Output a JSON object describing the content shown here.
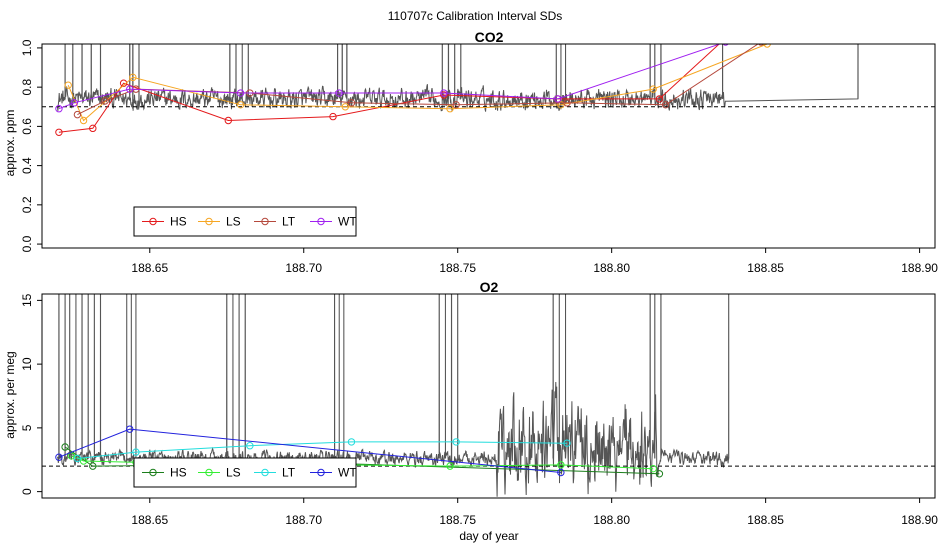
{
  "figure": {
    "title": "110707c   Calibration Interval SDs",
    "xlabel": "day of year"
  },
  "chart_data": [
    {
      "type": "line",
      "title": "CO2",
      "ylabel": "approx. ppm",
      "xlim": [
        188.615,
        188.905
      ],
      "ylim": [
        -0.02,
        1.02
      ],
      "xticks": [
        188.65,
        188.7,
        188.75,
        188.8,
        188.85,
        188.9
      ],
      "xtick_labels": [
        "188.65",
        "188.70",
        "188.75",
        "188.80",
        "188.85",
        "188.90"
      ],
      "yticks": [
        0.0,
        0.2,
        0.4,
        0.6,
        0.8,
        1.0
      ],
      "ytick_labels": [
        "0.0",
        "0.2",
        "0.4",
        "0.6",
        "0.8",
        "1.0"
      ],
      "reference_line": 0.7,
      "legend_position": "bottom-left",
      "noise": {
        "color": "#555555",
        "x_range": [
          188.62,
          188.837
        ],
        "baseline": 0.74,
        "amplitude": 0.09,
        "spikes": [
          188.6225,
          188.625,
          188.628,
          188.631,
          188.634,
          188.6435,
          188.6445,
          188.6465,
          188.676,
          188.678,
          188.68,
          188.682,
          188.711,
          188.7125,
          188.714,
          188.745,
          188.747,
          188.749,
          188.751,
          188.782,
          188.7835,
          188.785,
          188.8125,
          188.814,
          188.816,
          188.836,
          188.88
        ],
        "tail": [
          [
            188.88,
            0.95
          ],
          [
            188.8815,
            1.05
          ],
          [
            188.893,
            1.02
          ]
        ]
      },
      "series": [
        {
          "name": "HS",
          "color": "#e41a1c",
          "x": [
            188.6205,
            188.6315,
            188.6415,
            188.6755,
            188.7095,
            188.7455,
            188.7825,
            188.8155,
            188.837
          ],
          "y": [
            0.57,
            0.59,
            0.82,
            0.63,
            0.65,
            0.76,
            0.74,
            0.74,
            1.05
          ]
        },
        {
          "name": "LS",
          "color": "#f6a623",
          "x": [
            188.6235,
            188.6285,
            188.6445,
            188.6795,
            188.7135,
            188.7475,
            188.7835,
            188.8135,
            188.8505
          ],
          "y": [
            0.81,
            0.63,
            0.85,
            0.71,
            0.7,
            0.69,
            0.71,
            0.79,
            1.02
          ]
        },
        {
          "name": "LT",
          "color": "#b5483c",
          "x": [
            188.6265,
            188.6355,
            188.6455,
            188.6825,
            188.7155,
            188.7495,
            188.7855,
            188.8175,
            188.8485
          ],
          "y": [
            0.66,
            0.73,
            0.79,
            0.77,
            0.72,
            0.71,
            0.72,
            0.71,
            1.03
          ]
        },
        {
          "name": "WT",
          "color": "#a020f0",
          "x": [
            188.6205,
            188.6255,
            188.6435,
            188.6795,
            188.7115,
            188.7455,
            188.7825,
            188.837
          ],
          "y": [
            0.69,
            0.72,
            0.79,
            0.77,
            0.77,
            0.77,
            0.74,
            1.03
          ]
        }
      ]
    },
    {
      "type": "line",
      "title": "O2",
      "ylabel": "approx. per meg",
      "xlim": [
        188.615,
        188.905
      ],
      "ylim": [
        -0.5,
        15.5
      ],
      "xticks": [
        188.65,
        188.7,
        188.75,
        188.8,
        188.85,
        188.9
      ],
      "xtick_labels": [
        "188.65",
        "188.70",
        "188.75",
        "188.80",
        "188.85",
        "188.90"
      ],
      "yticks": [
        0,
        5,
        10,
        15
      ],
      "ytick_labels": [
        "0",
        "5",
        "10",
        "15"
      ],
      "reference_line": 2.0,
      "legend_position": "bottom-left",
      "noise": {
        "color": "#555555",
        "x_range": [
          188.62,
          188.838
        ],
        "baseline": 2.6,
        "amplitude": 1.0,
        "spikes": [
          188.6205,
          188.6225,
          188.624,
          188.626,
          188.628,
          188.63,
          188.632,
          188.634,
          188.6425,
          188.644,
          188.6455,
          188.675,
          188.677,
          188.679,
          188.681,
          188.71,
          188.7115,
          188.713,
          188.744,
          188.746,
          188.748,
          188.75,
          188.781,
          188.783,
          188.785,
          188.8125,
          188.814,
          188.816,
          188.838
        ],
        "bursts": [
          [
            188.7625,
            188.815,
            5.0
          ]
        ],
        "tail": []
      },
      "series": [
        {
          "name": "HS",
          "color": "#1b7e1b",
          "x": [
            188.6225,
            188.6315,
            188.7125,
            188.8155
          ],
          "y": [
            3.5,
            2.0,
            2.2,
            1.4
          ]
        },
        {
          "name": "LS",
          "color": "#33ee33",
          "x": [
            188.6245,
            188.6285,
            188.6455,
            188.6795,
            188.7135,
            188.7475,
            188.7835,
            188.8135
          ],
          "y": [
            2.8,
            2.4,
            2.3,
            2.2,
            2.1,
            2.0,
            2.1,
            1.8
          ]
        },
        {
          "name": "LT",
          "color": "#22dddd",
          "x": [
            188.6265,
            188.6455,
            188.6825,
            188.7155,
            188.7495,
            188.7855
          ],
          "y": [
            2.6,
            3.1,
            3.6,
            3.9,
            3.9,
            3.8
          ]
        },
        {
          "name": "WT",
          "color": "#2222dd",
          "x": [
            188.6205,
            188.6435,
            188.7835
          ],
          "y": [
            2.7,
            4.9,
            1.5
          ]
        }
      ]
    }
  ]
}
